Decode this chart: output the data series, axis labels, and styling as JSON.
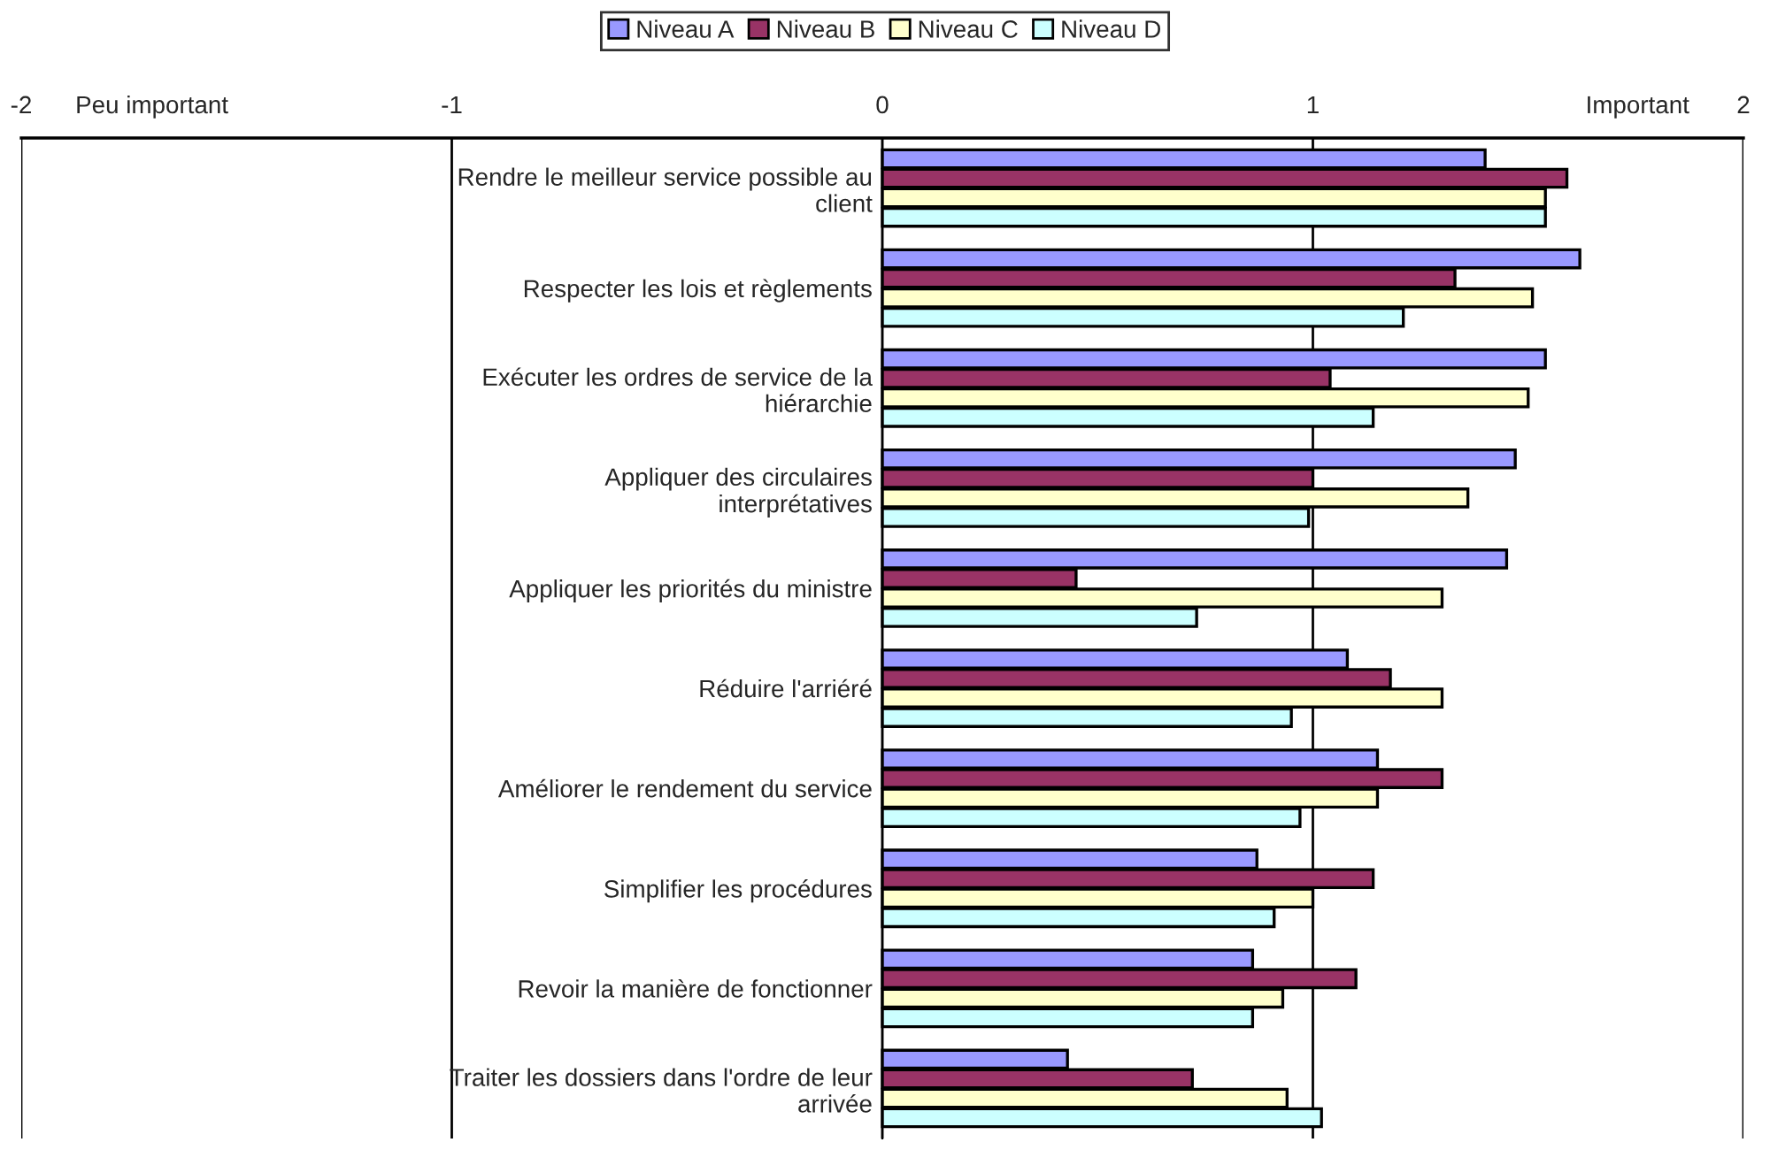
{
  "chart_data": {
    "type": "bar",
    "orientation": "horizontal",
    "categories": [
      "Rendre le meilleur service possible au\nclient",
      "Respecter les lois et règlements",
      "Exécuter les ordres de service de la\nhiérarchie",
      "Appliquer des circulaires\ninterprétatives",
      "Appliquer les priorités du ministre",
      "Réduire l'arriéré",
      "Améliorer le rendement du service",
      "Simplifier les procédures",
      "Revoir la manière de fonctionner",
      "Traiter les dossiers dans l'ordre de leur\narrivée"
    ],
    "series": [
      {
        "name": "Niveau A",
        "color": "#9999ff",
        "values": [
          1.4,
          1.62,
          1.54,
          1.47,
          1.45,
          1.08,
          1.15,
          0.87,
          0.86,
          0.43
        ]
      },
      {
        "name": "Niveau B",
        "color": "#993366",
        "values": [
          1.59,
          1.33,
          1.04,
          1.0,
          0.45,
          1.18,
          1.3,
          1.14,
          1.1,
          0.72
        ]
      },
      {
        "name": "Niveau C",
        "color": "#ffffcc",
        "values": [
          1.54,
          1.51,
          1.5,
          1.36,
          1.3,
          1.3,
          1.15,
          1.0,
          0.93,
          0.94
        ]
      },
      {
        "name": "Niveau D",
        "color": "#ccffff",
        "values": [
          1.54,
          1.21,
          1.14,
          0.99,
          0.73,
          0.95,
          0.97,
          0.91,
          0.86,
          1.02
        ]
      }
    ],
    "xlim": [
      -2,
      2
    ],
    "xticks": [
      -2,
      -1,
      0,
      1,
      2
    ],
    "annotations": [
      "Peu important",
      "Important"
    ],
    "grid": "x",
    "legend": "top"
  }
}
